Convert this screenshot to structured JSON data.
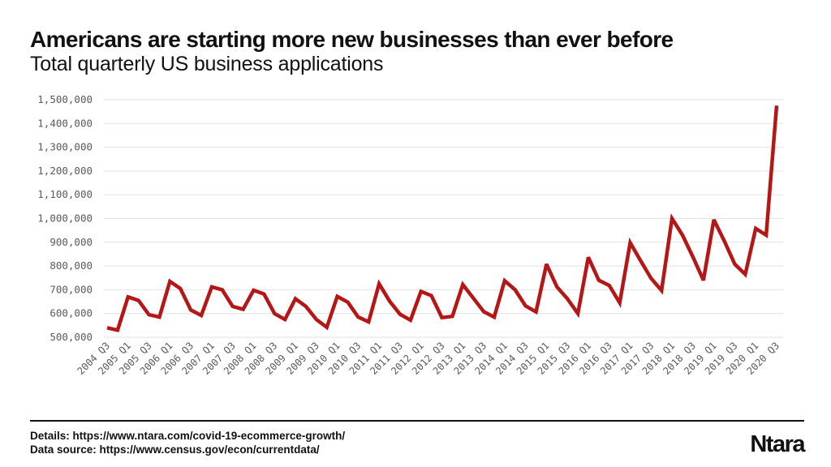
{
  "header": {
    "title": "Americans are starting more new businesses than ever before",
    "subtitle": "Total quarterly US business applications"
  },
  "footer": {
    "details": "Details: https://www.ntara.com/covid-19-ecommerce-growth/",
    "source": "Data source: https://www.census.gov/econ/currentdata/"
  },
  "brand": {
    "logo_text": "Ntara"
  },
  "colors": {
    "line": "#b51616",
    "grid": "#e2e2e2",
    "text": "#111111",
    "tick": "#5a5a5a"
  },
  "chart_data": {
    "type": "line",
    "title": "Americans are starting more new businesses than ever before",
    "subtitle": "Total quarterly US business applications",
    "xlabel": "",
    "ylabel": "",
    "ylim": [
      500000,
      1500000
    ],
    "yticks": [
      500000,
      600000,
      700000,
      800000,
      900000,
      1000000,
      1100000,
      1200000,
      1300000,
      1400000,
      1500000
    ],
    "ytick_labels": [
      "500,000",
      "600,000",
      "700,000",
      "800,000",
      "900,000",
      "1,000,000",
      "1,100,000",
      "1,200,000",
      "1,300,000",
      "1,400,000",
      "1,500,000"
    ],
    "grid": true,
    "legend": "none",
    "x": [
      "2004 Q3",
      "2004 Q4",
      "2005 Q1",
      "2005 Q2",
      "2005 Q3",
      "2005 Q4",
      "2006 Q1",
      "2006 Q2",
      "2006 Q3",
      "2006 Q4",
      "2007 Q1",
      "2007 Q2",
      "2007 Q3",
      "2007 Q4",
      "2008 Q1",
      "2008 Q2",
      "2008 Q3",
      "2008 Q4",
      "2009 Q1",
      "2009 Q2",
      "2009 Q3",
      "2009 Q4",
      "2010 Q1",
      "2010 Q2",
      "2010 Q3",
      "2010 Q4",
      "2011 Q1",
      "2011 Q2",
      "2011 Q3",
      "2011 Q4",
      "2012 Q1",
      "2012 Q2",
      "2012 Q3",
      "2012 Q4",
      "2013 Q1",
      "2013 Q2",
      "2013 Q3",
      "2013 Q4",
      "2014 Q1",
      "2014 Q2",
      "2014 Q3",
      "2014 Q4",
      "2015 Q1",
      "2015 Q2",
      "2015 Q3",
      "2015 Q4",
      "2016 Q1",
      "2016 Q2",
      "2016 Q3",
      "2016 Q4",
      "2017 Q1",
      "2017 Q2",
      "2017 Q3",
      "2017 Q4",
      "2018 Q1",
      "2018 Q2",
      "2018 Q3",
      "2018 Q4",
      "2019 Q1",
      "2019 Q2",
      "2019 Q3",
      "2019 Q4",
      "2020 Q1",
      "2020 Q2",
      "2020 Q3"
    ],
    "x_tick_labels": [
      "2004 Q3",
      "2005 Q1",
      "2005 Q3",
      "2006 Q1",
      "2006 Q3",
      "2007 Q1",
      "2007 Q3",
      "2008 Q1",
      "2008 Q3",
      "2009 Q1",
      "2009 Q3",
      "2010 Q1",
      "2010 Q3",
      "2011 Q1",
      "2011 Q3",
      "2012 Q1",
      "2012 Q3",
      "2013 Q1",
      "2013 Q3",
      "2014 Q1",
      "2014 Q3",
      "2015 Q1",
      "2015 Q3",
      "2016 Q1",
      "2016 Q3",
      "2017 Q1",
      "2017 Q3",
      "2018 Q1",
      "2018 Q3",
      "2019 Q1",
      "2019 Q3",
      "2020 Q1",
      "2020 Q3"
    ],
    "series": [
      {
        "values": [
          540000,
          530000,
          670000,
          655000,
          595000,
          585000,
          735000,
          705000,
          615000,
          592000,
          712000,
          700000,
          630000,
          618000,
          698000,
          682000,
          600000,
          575000,
          662000,
          630000,
          575000,
          542000,
          672000,
          648000,
          585000,
          565000,
          725000,
          652000,
          597000,
          572000,
          693000,
          675000,
          583000,
          588000,
          722000,
          665000,
          608000,
          585000,
          738000,
          700000,
          632000,
          607000,
          808000,
          712000,
          662000,
          600000,
          837000,
          740000,
          718000,
          645000,
          898000,
          822000,
          748000,
          697000,
          1000000,
          930000,
          838000,
          740000,
          995000,
          905000,
          808000,
          765000,
          958000,
          930000,
          1475000
        ]
      }
    ]
  }
}
